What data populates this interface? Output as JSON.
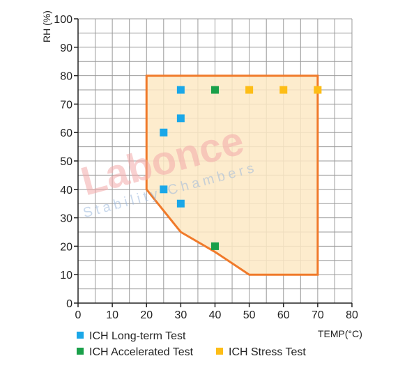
{
  "chart_data": {
    "type": "scatter",
    "xlabel": "TEMP(°C)",
    "ylabel": "RH (%)",
    "xlim": [
      0,
      80
    ],
    "ylim": [
      0,
      100
    ],
    "x_ticks": [
      0,
      10,
      20,
      30,
      40,
      50,
      60,
      70,
      80
    ],
    "y_ticks": [
      0,
      10,
      20,
      30,
      40,
      50,
      60,
      70,
      80,
      90,
      100
    ],
    "grid": true,
    "region": {
      "fill": "#fde9c4",
      "stroke": "#f07a2a",
      "points": [
        [
          20,
          80
        ],
        [
          70,
          80
        ],
        [
          70,
          10
        ],
        [
          50,
          10
        ],
        [
          40,
          18
        ],
        [
          30,
          25
        ],
        [
          20,
          40
        ]
      ]
    },
    "series": [
      {
        "name": "ICH Long-term Test",
        "color": "#1aa7e8",
        "points": [
          [
            30,
            75
          ],
          [
            30,
            65
          ],
          [
            25,
            60
          ],
          [
            25,
            40
          ],
          [
            30,
            35
          ]
        ]
      },
      {
        "name": "ICH Accelerated Test",
        "color": "#1aa04a",
        "points": [
          [
            40,
            75
          ],
          [
            40,
            20
          ]
        ]
      },
      {
        "name": "ICH Stress Test",
        "color": "#fdbd16",
        "points": [
          [
            50,
            75
          ],
          [
            60,
            75
          ],
          [
            70,
            75
          ]
        ]
      }
    ],
    "legend_position": "bottom-left"
  },
  "watermark": {
    "main": "Labonce",
    "sub": "Stability Chambers"
  }
}
